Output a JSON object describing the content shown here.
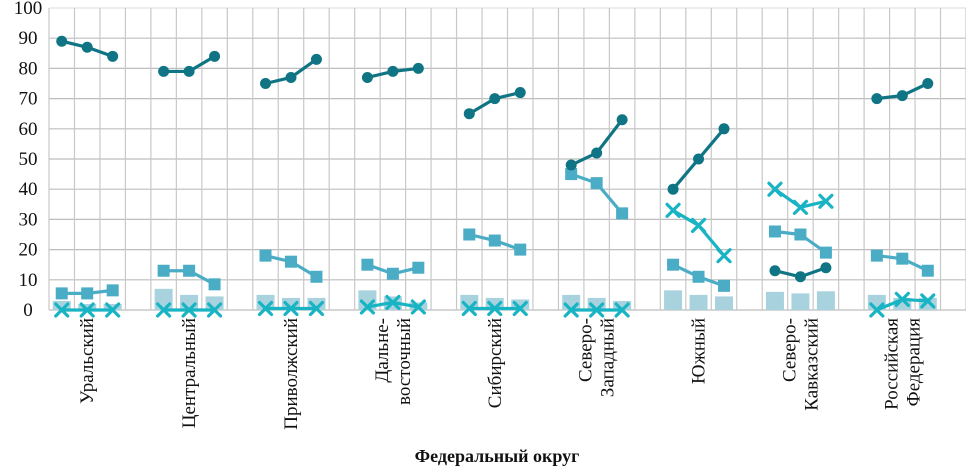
{
  "chart_data": {
    "type": "line",
    "title": "",
    "xlabel": "Федеральный округ",
    "ylabel": "",
    "ylim": [
      0,
      100
    ],
    "yticks": [
      0,
      10,
      20,
      30,
      40,
      50,
      60,
      70,
      80,
      90,
      100
    ],
    "grid": true,
    "legend": "none",
    "categories": [
      [
        "Уральский"
      ],
      [
        "Центральный"
      ],
      [
        "Приволжский"
      ],
      [
        "Дальне-",
        "восточный"
      ],
      [
        "Сибирский"
      ],
      [
        "Северо-",
        "Западный"
      ],
      [
        "Южный"
      ],
      [
        "Северо-",
        "Кавказский"
      ],
      [
        "Российская",
        "Федерация"
      ]
    ],
    "points_per_category": 3,
    "series": [
      {
        "name": "series-circle",
        "kind": "line",
        "marker": "circle",
        "color": "#0f7484",
        "values": [
          [
            89,
            87,
            84
          ],
          [
            79,
            79,
            84
          ],
          [
            75,
            77,
            83
          ],
          [
            77,
            79,
            80
          ],
          [
            65,
            70,
            72
          ],
          [
            48,
            52,
            63
          ],
          [
            40,
            50,
            60
          ],
          [
            13,
            11,
            14
          ],
          [
            70,
            71,
            75
          ]
        ]
      },
      {
        "name": "series-square",
        "kind": "line",
        "marker": "square",
        "color": "#4bacc6",
        "values": [
          [
            5.5,
            5.5,
            6.5
          ],
          [
            13,
            13,
            8.5
          ],
          [
            18,
            16,
            11
          ],
          [
            15,
            12,
            14
          ],
          [
            25,
            23,
            20
          ],
          [
            45,
            42,
            32
          ],
          [
            15,
            11,
            8
          ],
          [
            26,
            25,
            19
          ],
          [
            18,
            17,
            13
          ]
        ]
      },
      {
        "name": "series-cross",
        "kind": "line",
        "marker": "x",
        "color": "#19b4c4",
        "values": [
          [
            0,
            0,
            0
          ],
          [
            0,
            0,
            0
          ],
          [
            0.5,
            0.5,
            0.5
          ],
          [
            1,
            2.5,
            1
          ],
          [
            0.5,
            0.5,
            0.5
          ],
          [
            0,
            0,
            0
          ],
          [
            33,
            28,
            18
          ],
          [
            40,
            34,
            36
          ],
          [
            0,
            3.5,
            3
          ]
        ]
      },
      {
        "name": "series-bar",
        "kind": "bar",
        "color": "#a8d3de",
        "values": [
          [
            3,
            2,
            2
          ],
          [
            7,
            5,
            4.5
          ],
          [
            5,
            4,
            4
          ],
          [
            6.5,
            4.5,
            2.5
          ],
          [
            5,
            4,
            3.5
          ],
          [
            5,
            4,
            3
          ],
          [
            6.5,
            5,
            4.5
          ],
          [
            6,
            5.5,
            6.2
          ],
          [
            5,
            4,
            4
          ]
        ]
      }
    ]
  }
}
